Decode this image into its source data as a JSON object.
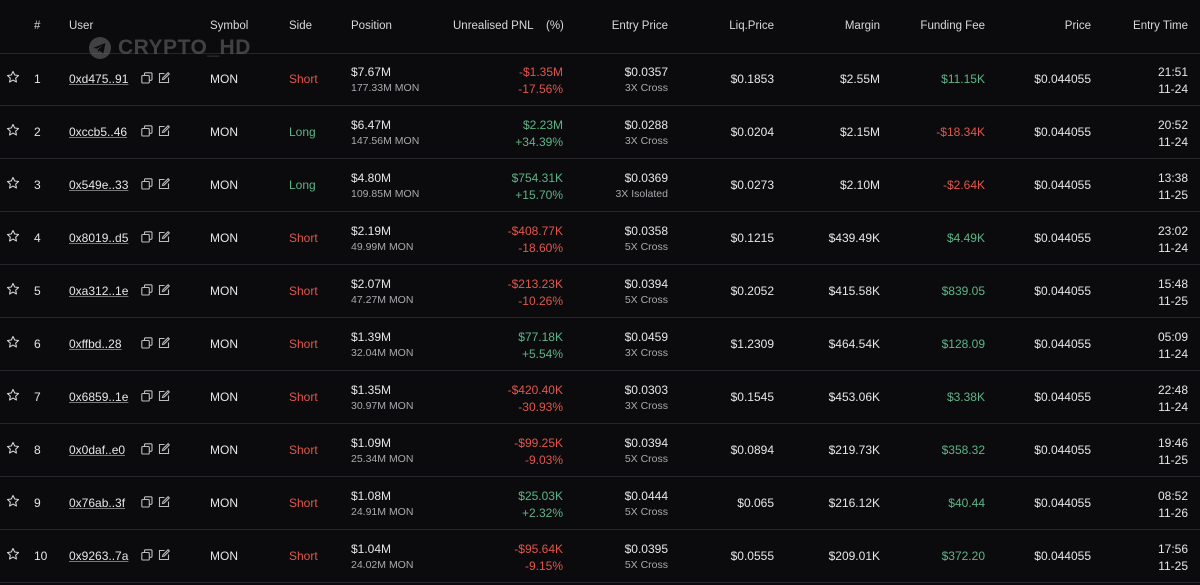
{
  "headers": {
    "index": "#",
    "user": "User",
    "symbol": "Symbol",
    "side": "Side",
    "position": "Position",
    "pnl": "Unrealised PNL",
    "pnl_pct": "(%)",
    "entry": "Entry Price",
    "liq": "Liq.Price",
    "margin": "Margin",
    "funding": "Funding Fee",
    "price": "Price",
    "time": "Entry Time"
  },
  "watermark": "CRYPTO_HD",
  "colors": {
    "negative": "#e2564b",
    "positive": "#5fb487",
    "background": "#0b0b0d"
  },
  "rows": [
    {
      "idx": "1",
      "user": "0xd475..91",
      "symbol": "MON",
      "side": "Short",
      "pos_usd": "$7.67M",
      "pos_qty": "177.33M MON",
      "pnl": "-$1.35M",
      "pnl_pct": "-17.56%",
      "pnl_sign": "neg",
      "entry": "$0.0357",
      "leverage": "3X Cross",
      "liq": "$0.1853",
      "margin": "$2.55M",
      "funding": "$11.15K",
      "funding_sign": "posi",
      "price": "$0.044055",
      "time": "21:51",
      "date": "11-24"
    },
    {
      "idx": "2",
      "user": "0xccb5..46",
      "symbol": "MON",
      "side": "Long",
      "pos_usd": "$6.47M",
      "pos_qty": "147.56M MON",
      "pnl": "$2.23M",
      "pnl_pct": "+34.39%",
      "pnl_sign": "posi",
      "entry": "$0.0288",
      "leverage": "3X Cross",
      "liq": "$0.0204",
      "margin": "$2.15M",
      "funding": "-$18.34K",
      "funding_sign": "neg",
      "price": "$0.044055",
      "time": "20:52",
      "date": "11-24"
    },
    {
      "idx": "3",
      "user": "0x549e..33",
      "symbol": "MON",
      "side": "Long",
      "pos_usd": "$4.80M",
      "pos_qty": "109.85M MON",
      "pnl": "$754.31K",
      "pnl_pct": "+15.70%",
      "pnl_sign": "posi",
      "entry": "$0.0369",
      "leverage": "3X Isolated",
      "liq": "$0.0273",
      "margin": "$2.10M",
      "funding": "-$2.64K",
      "funding_sign": "neg",
      "price": "$0.044055",
      "time": "13:38",
      "date": "11-25"
    },
    {
      "idx": "4",
      "user": "0x8019..d5",
      "symbol": "MON",
      "side": "Short",
      "pos_usd": "$2.19M",
      "pos_qty": "49.99M MON",
      "pnl": "-$408.77K",
      "pnl_pct": "-18.60%",
      "pnl_sign": "neg",
      "entry": "$0.0358",
      "leverage": "5X Cross",
      "liq": "$0.1215",
      "margin": "$439.49K",
      "funding": "$4.49K",
      "funding_sign": "posi",
      "price": "$0.044055",
      "time": "23:02",
      "date": "11-24"
    },
    {
      "idx": "5",
      "user": "0xa312..1e",
      "symbol": "MON",
      "side": "Short",
      "pos_usd": "$2.07M",
      "pos_qty": "47.27M MON",
      "pnl": "-$213.23K",
      "pnl_pct": "-10.26%",
      "pnl_sign": "neg",
      "entry": "$0.0394",
      "leverage": "5X Cross",
      "liq": "$0.2052",
      "margin": "$415.58K",
      "funding": "$839.05",
      "funding_sign": "posi",
      "price": "$0.044055",
      "time": "15:48",
      "date": "11-25"
    },
    {
      "idx": "6",
      "user": "0xffbd..28",
      "symbol": "MON",
      "side": "Short",
      "pos_usd": "$1.39M",
      "pos_qty": "32.04M MON",
      "pnl": "$77.18K",
      "pnl_pct": "+5.54%",
      "pnl_sign": "posi",
      "entry": "$0.0459",
      "leverage": "3X Cross",
      "liq": "$1.2309",
      "margin": "$464.54K",
      "funding": "$128.09",
      "funding_sign": "posi",
      "price": "$0.044055",
      "time": "05:09",
      "date": "11-24"
    },
    {
      "idx": "7",
      "user": "0x6859..1e",
      "symbol": "MON",
      "side": "Short",
      "pos_usd": "$1.35M",
      "pos_qty": "30.97M MON",
      "pnl": "-$420.40K",
      "pnl_pct": "-30.93%",
      "pnl_sign": "neg",
      "entry": "$0.0303",
      "leverage": "3X Cross",
      "liq": "$0.1545",
      "margin": "$453.06K",
      "funding": "$3.38K",
      "funding_sign": "posi",
      "price": "$0.044055",
      "time": "22:48",
      "date": "11-24"
    },
    {
      "idx": "8",
      "user": "0x0daf..e0",
      "symbol": "MON",
      "side": "Short",
      "pos_usd": "$1.09M",
      "pos_qty": "25.34M MON",
      "pnl": "-$99.25K",
      "pnl_pct": "-9.03%",
      "pnl_sign": "neg",
      "entry": "$0.0394",
      "leverage": "5X Cross",
      "liq": "$0.0894",
      "margin": "$219.73K",
      "funding": "$358.32",
      "funding_sign": "posi",
      "price": "$0.044055",
      "time": "19:46",
      "date": "11-25"
    },
    {
      "idx": "9",
      "user": "0x76ab..3f",
      "symbol": "MON",
      "side": "Short",
      "pos_usd": "$1.08M",
      "pos_qty": "24.91M MON",
      "pnl": "$25.03K",
      "pnl_pct": "+2.32%",
      "pnl_sign": "posi",
      "entry": "$0.0444",
      "leverage": "5X Cross",
      "liq": "$0.065",
      "margin": "$216.12K",
      "funding": "$40.44",
      "funding_sign": "posi",
      "price": "$0.044055",
      "time": "08:52",
      "date": "11-26"
    },
    {
      "idx": "10",
      "user": "0x9263..7a",
      "symbol": "MON",
      "side": "Short",
      "pos_usd": "$1.04M",
      "pos_qty": "24.02M MON",
      "pnl": "-$95.64K",
      "pnl_pct": "-9.15%",
      "pnl_sign": "neg",
      "entry": "$0.0395",
      "leverage": "5X Cross",
      "liq": "$0.0555",
      "margin": "$209.01K",
      "funding": "$372.20",
      "funding_sign": "posi",
      "price": "$0.044055",
      "time": "17:56",
      "date": "11-25"
    }
  ]
}
